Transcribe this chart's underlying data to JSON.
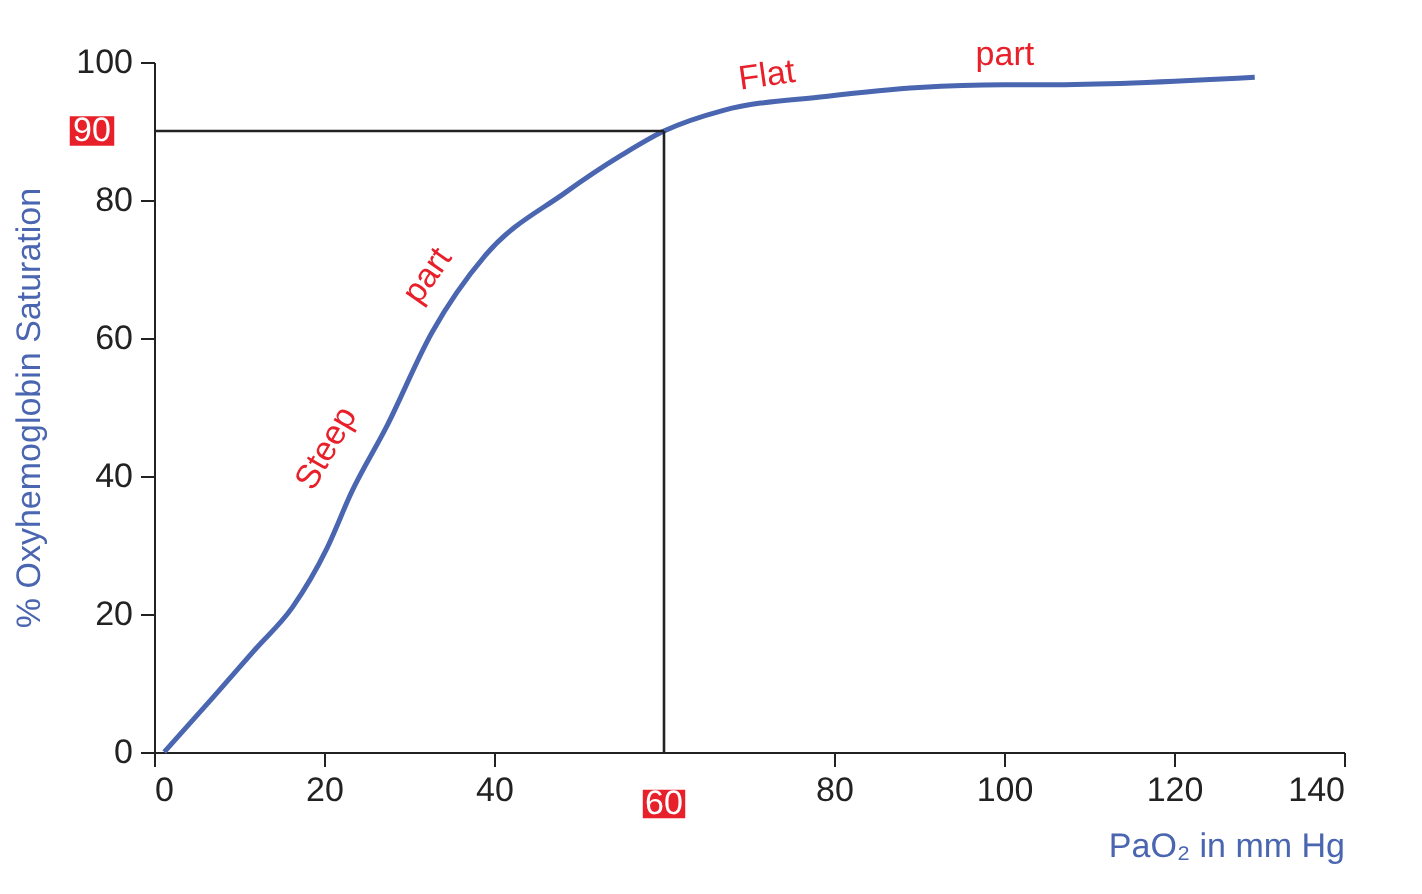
{
  "chart_data": {
    "type": "line",
    "xlabel": "PaO₂ in mm Hg",
    "ylabel": "% Oxyhemoglobin Saturation",
    "xlim": [
      0,
      140
    ],
    "xticks": [
      0,
      20,
      40,
      80,
      100,
      120,
      140
    ],
    "ylim": [
      0,
      100
    ],
    "yticks": [
      0,
      20,
      40,
      60,
      80,
      100
    ],
    "grid": false,
    "marker": "none",
    "line_style": "solid",
    "series": [
      {
        "color": "#4a66b0",
        "x": [
          1.2,
          7,
          12,
          16.3,
          20.3,
          23.3,
          27.3,
          32.7,
          39,
          48.3,
          55,
          60,
          67,
          79,
          90,
          100,
          105,
          129.5
        ],
        "values": [
          0,
          8,
          15,
          21,
          29.4,
          37.8,
          47,
          60.8,
          72,
          81,
          86.5,
          90,
          93,
          95,
          96.3,
          96.7,
          96.7,
          97.8
        ]
      }
    ],
    "ref_lines": [
      {
        "axis": "y",
        "value": 90,
        "label": "90",
        "color": "#222222"
      },
      {
        "axis": "x",
        "value": 60,
        "label": "60",
        "color": "#222222"
      }
    ],
    "annotations": [
      "Steep",
      "part",
      "Flat",
      "part"
    ]
  }
}
